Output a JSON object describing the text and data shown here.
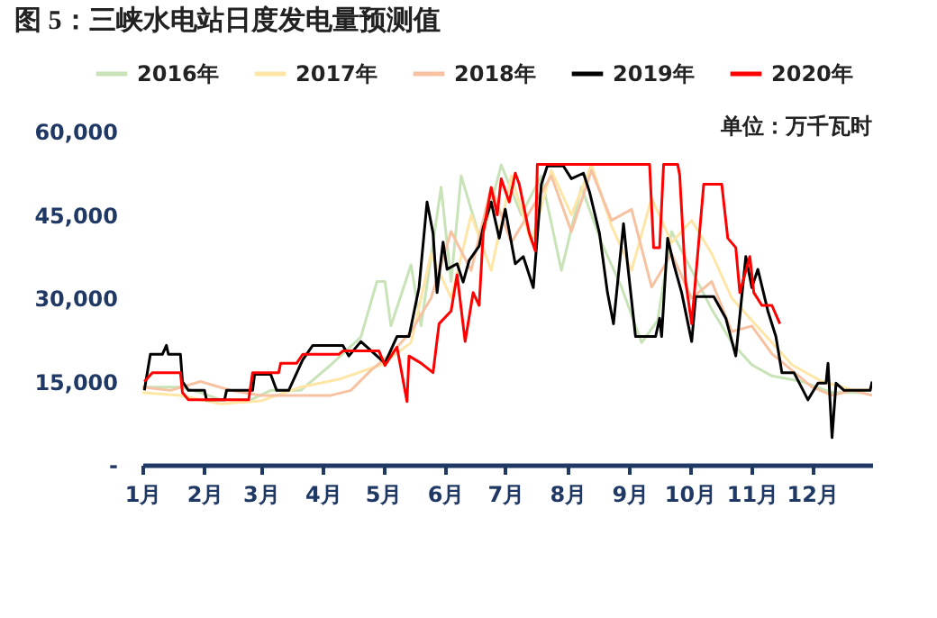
{
  "chart_data": {
    "type": "line",
    "title": "图 5：三峡水电站日度发电量预测值",
    "annotations": [
      "单位：万千瓦时"
    ],
    "legend": "top",
    "xlim": [
      "--01-01",
      "--12-31"
    ],
    "xticks": [
      {
        "value": "--01-01",
        "label": "1月"
      },
      {
        "value": "--02-01",
        "label": "2月"
      },
      {
        "value": "--03-01",
        "label": "3月"
      },
      {
        "value": "--04-01",
        "label": "4月"
      },
      {
        "value": "--05-01",
        "label": "5月"
      },
      {
        "value": "--06-01",
        "label": "6月"
      },
      {
        "value": "--07-01",
        "label": "7月"
      },
      {
        "value": "--08-01",
        "label": "8月"
      },
      {
        "value": "--09-01",
        "label": "9月"
      },
      {
        "value": "--10-01",
        "label": "10月"
      },
      {
        "value": "--11-01",
        "label": "11月"
      },
      {
        "value": "--12-01",
        "label": "12月"
      }
    ],
    "ylim": [
      0,
      60000
    ],
    "yticks": [
      {
        "value": 0,
        "label": "-"
      },
      {
        "value": 15000,
        "label": "15,000"
      },
      {
        "value": 30000,
        "label": "30,000"
      },
      {
        "value": 45000,
        "label": "45,000"
      },
      {
        "value": 60000,
        "label": "60,000"
      }
    ],
    "series": [
      {
        "name": "2016年",
        "color": "#c9e3b8",
        "x": [
          "--01-01",
          "--01-20",
          "--01-30",
          "--02-09",
          "--02-24",
          "--03-06",
          "--03-21",
          "--04-05",
          "--04-20",
          "--04-28",
          "--05-02",
          "--05-05",
          "--05-15",
          "--05-20",
          "--05-30",
          "--06-04",
          "--06-09",
          "--06-19",
          "--06-29",
          "--07-09",
          "--07-19",
          "--07-29",
          "--08-08",
          "--08-18",
          "--08-28",
          "--09-07",
          "--09-15",
          "--09-22",
          "--10-02",
          "--10-12",
          "--10-22",
          "--11-01",
          "--11-11",
          "--11-26",
          "--12-11",
          "--12-26"
        ],
        "values": [
          14000,
          14000,
          13000,
          11700,
          11700,
          13400,
          13400,
          18000,
          23000,
          33000,
          33000,
          25000,
          36000,
          25000,
          50000,
          33000,
          52000,
          40000,
          54000,
          45000,
          52000,
          35000,
          50000,
          40000,
          32000,
          22000,
          26000,
          42000,
          35000,
          28000,
          22000,
          18000,
          16000,
          15000,
          13000,
          13000
        ]
      },
      {
        "name": "2017年",
        "color": "#ffe6a6",
        "x": [
          "--01-01",
          "--01-20",
          "--02-09",
          "--03-01",
          "--03-21",
          "--04-10",
          "--04-30",
          "--05-15",
          "--05-25",
          "--06-04",
          "--06-14",
          "--06-24",
          "--07-04",
          "--07-14",
          "--07-24",
          "--08-03",
          "--08-13",
          "--08-23",
          "--09-02",
          "--09-12",
          "--09-22",
          "--10-02",
          "--10-12",
          "--10-22",
          "--11-01",
          "--11-11",
          "--11-21",
          "--12-06",
          "--12-21",
          "--12-31"
        ],
        "values": [
          13000,
          12500,
          11000,
          11500,
          14000,
          15500,
          18000,
          22000,
          38000,
          30000,
          45000,
          35000,
          52000,
          40000,
          53000,
          45000,
          54000,
          43000,
          35000,
          48000,
          40000,
          44000,
          38000,
          30000,
          26000,
          22000,
          18000,
          15000,
          13500,
          13500
        ]
      },
      {
        "name": "2018年",
        "color": "#f6c2a2",
        "x": [
          "--01-01",
          "--01-15",
          "--01-30",
          "--02-14",
          "--03-01",
          "--03-16",
          "--04-05",
          "--04-15",
          "--04-25",
          "--05-05",
          "--05-15",
          "--05-25",
          "--06-04",
          "--06-14",
          "--06-24",
          "--07-04",
          "--07-14",
          "--07-24",
          "--08-03",
          "--08-13",
          "--08-23",
          "--09-02",
          "--09-12",
          "--09-22",
          "--10-02",
          "--10-12",
          "--10-22",
          "--11-01",
          "--11-11",
          "--11-21",
          "--12-01",
          "--12-11",
          "--12-21",
          "--12-31"
        ],
        "values": [
          14000,
          13400,
          15000,
          13400,
          12500,
          12500,
          12500,
          13400,
          17000,
          20000,
          24000,
          30000,
          42000,
          35000,
          50000,
          40000,
          46000,
          52000,
          42000,
          53000,
          44000,
          46000,
          32000,
          38000,
          30000,
          33000,
          24000,
          25000,
          20000,
          17000,
          14000,
          12500,
          13400,
          12500
        ]
      },
      {
        "name": "2019年",
        "color": "#000000",
        "x": [
          "--01-02",
          "--01-05",
          "--01-11",
          "--01-13",
          "--01-14",
          "--01-20",
          "--01-21",
          "--01-24",
          "--02-01",
          "--02-02",
          "--02-11",
          "--02-12",
          "--02-25",
          "--02-26",
          "--03-06",
          "--03-09",
          "--03-15",
          "--03-22",
          "--03-27",
          "--04-11",
          "--04-14",
          "--04-20",
          "--05-02",
          "--05-08",
          "--05-14",
          "--05-19",
          "--05-23",
          "--05-26",
          "--05-28",
          "--05-31",
          "--06-02",
          "--06-07",
          "--06-10",
          "--06-13",
          "--06-18",
          "--06-20",
          "--06-24",
          "--06-28",
          "--07-01",
          "--07-06",
          "--07-10",
          "--07-15",
          "--07-19",
          "--07-22",
          "--07-30",
          "--08-03",
          "--08-09",
          "--08-12",
          "--08-17",
          "--08-21",
          "--08-24",
          "--08-29",
          "--08-31",
          "--09-04",
          "--09-14",
          "--09-16",
          "--09-17",
          "--09-20",
          "--09-23",
          "--09-27",
          "--10-02",
          "--10-04",
          "--10-13",
          "--10-19",
          "--10-24",
          "--10-29",
          "--11-01",
          "--11-04",
          "--11-09",
          "--11-13",
          "--11-16",
          "--11-22",
          "--11-29",
          "--12-04",
          "--12-08",
          "--12-09",
          "--12-11",
          "--12-13",
          "--12-17",
          "--12-30",
          "--12-31"
        ],
        "values": [
          13400,
          19900,
          19900,
          21500,
          19900,
          19900,
          15000,
          13400,
          13400,
          11700,
          11700,
          13400,
          13400,
          16300,
          16300,
          13400,
          13400,
          18900,
          21500,
          21500,
          19600,
          22200,
          18300,
          23100,
          23100,
          31900,
          47300,
          41700,
          31000,
          40100,
          35200,
          36200,
          32900,
          36800,
          39400,
          42700,
          47300,
          40800,
          46000,
          36200,
          37500,
          31900,
          50500,
          53800,
          53800,
          51500,
          52500,
          49200,
          41700,
          31000,
          25400,
          43400,
          36200,
          23100,
          23100,
          26400,
          23100,
          40800,
          36200,
          31000,
          22200,
          30300,
          30300,
          26400,
          19600,
          37500,
          31900,
          35200,
          27700,
          23100,
          16600,
          16600,
          11700,
          14700,
          14700,
          18300,
          4900,
          14700,
          13400,
          13400,
          15000
        ]
      },
      {
        "name": "2020年",
        "color": "#ff0000",
        "x": [
          "--01-02",
          "--01-06",
          "--01-20",
          "--01-21",
          "--01-24",
          "--02-23",
          "--02-25",
          "--03-10",
          "--03-11",
          "--03-19",
          "--03-22",
          "--04-09",
          "--04-11",
          "--04-29",
          "--05-02",
          "--05-08",
          "--05-13",
          "--05-14",
          "--05-20",
          "--05-26",
          "--05-29",
          "--06-04",
          "--06-07",
          "--06-11",
          "--06-15",
          "--06-18",
          "--06-20",
          "--06-24",
          "--06-27",
          "--06-29",
          "--07-03",
          "--07-06",
          "--07-08",
          "--07-13",
          "--07-16",
          "--07-17",
          "--09-11",
          "--09-13",
          "--09-16",
          "--09-18",
          "--09-25",
          "--09-26",
          "--09-29",
          "--10-02",
          "--10-08",
          "--10-17",
          "--10-20",
          "--10-24",
          "--10-26",
          "--10-31",
          "--11-02",
          "--11-06",
          "--11-11",
          "--11-15"
        ],
        "values": [
          15000,
          16600,
          16600,
          13000,
          11700,
          11700,
          16600,
          16600,
          18300,
          18300,
          19900,
          19900,
          20500,
          20500,
          17900,
          21200,
          11400,
          19600,
          18300,
          16600,
          25400,
          27700,
          34200,
          22200,
          31000,
          28700,
          41700,
          49900,
          45000,
          51500,
          47300,
          52500,
          50500,
          41700,
          38500,
          54100,
          54100,
          39100,
          39100,
          54100,
          54100,
          52200,
          32900,
          25400,
          50500,
          50500,
          40800,
          39100,
          31000,
          37500,
          31000,
          28700,
          28700,
          25400
        ]
      }
    ]
  }
}
